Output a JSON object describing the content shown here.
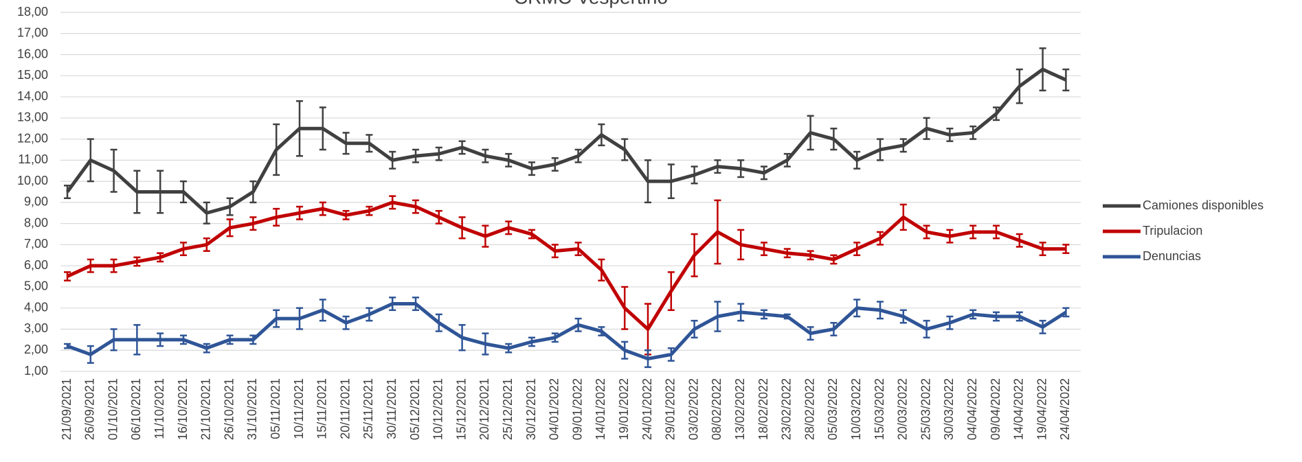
{
  "chart_data": {
    "type": "line",
    "title": "CRMC Vespertino",
    "categories": [
      "21/09/2021",
      "26/09/2021",
      "01/10/2021",
      "06/10/2021",
      "11/10/2021",
      "16/10/2021",
      "21/10/2021",
      "26/10/2021",
      "31/10/2021",
      "05/11/2021",
      "10/11/2021",
      "15/11/2021",
      "20/11/2021",
      "25/11/2021",
      "30/11/2021",
      "05/12/2021",
      "10/12/2021",
      "15/12/2021",
      "20/12/2021",
      "25/12/2021",
      "30/12/2021",
      "04/01/2022",
      "09/01/2022",
      "14/01/2022",
      "19/01/2022",
      "24/01/2022",
      "29/01/2022",
      "03/02/2022",
      "08/02/2022",
      "13/02/2022",
      "18/02/2022",
      "23/02/2022",
      "28/02/2022",
      "05/03/2022",
      "10/03/2022",
      "15/03/2022",
      "20/03/2022",
      "25/03/2022",
      "30/03/2022",
      "04/04/2022",
      "09/04/2022",
      "14/04/2022",
      "19/04/2022",
      "24/04/2022"
    ],
    "series": [
      {
        "name": "Camiones disponibles",
        "color": "#404040",
        "values": [
          9.5,
          11.0,
          10.5,
          9.5,
          9.5,
          9.5,
          8.5,
          8.8,
          9.5,
          11.5,
          12.5,
          12.5,
          11.8,
          11.8,
          11.0,
          11.2,
          11.3,
          11.6,
          11.2,
          11.0,
          10.6,
          10.8,
          11.2,
          12.2,
          11.5,
          10.0,
          10.0,
          10.3,
          10.7,
          10.6,
          10.4,
          11.0,
          12.3,
          12.0,
          11.0,
          11.5,
          11.7,
          12.5,
          12.2,
          12.3,
          13.2,
          14.5,
          15.3,
          14.8
        ],
        "errors": [
          0.3,
          1.0,
          1.0,
          1.0,
          1.0,
          0.5,
          0.5,
          0.4,
          0.5,
          1.2,
          1.3,
          1.0,
          0.5,
          0.4,
          0.4,
          0.3,
          0.3,
          0.3,
          0.3,
          0.3,
          0.3,
          0.3,
          0.3,
          0.5,
          0.5,
          1.0,
          0.8,
          0.4,
          0.3,
          0.4,
          0.3,
          0.3,
          0.8,
          0.5,
          0.4,
          0.5,
          0.3,
          0.5,
          0.3,
          0.3,
          0.3,
          0.8,
          1.0,
          0.5
        ]
      },
      {
        "name": "Tripulacion",
        "color": "#c00000",
        "values": [
          5.5,
          6.0,
          6.0,
          6.2,
          6.4,
          6.8,
          7.0,
          7.8,
          8.0,
          8.3,
          8.5,
          8.7,
          8.4,
          8.6,
          9.0,
          8.8,
          8.3,
          7.8,
          7.4,
          7.8,
          7.5,
          6.7,
          6.8,
          5.8,
          4.0,
          3.0,
          4.8,
          6.5,
          7.6,
          7.0,
          6.8,
          6.6,
          6.5,
          6.3,
          6.8,
          7.3,
          8.3,
          7.6,
          7.4,
          7.6,
          7.6,
          7.2,
          6.8,
          6.8
        ],
        "errors": [
          0.2,
          0.3,
          0.3,
          0.2,
          0.2,
          0.3,
          0.3,
          0.4,
          0.3,
          0.4,
          0.3,
          0.3,
          0.2,
          0.2,
          0.3,
          0.3,
          0.3,
          0.5,
          0.5,
          0.3,
          0.2,
          0.3,
          0.3,
          0.5,
          1.0,
          1.2,
          0.9,
          1.0,
          1.5,
          0.7,
          0.3,
          0.2,
          0.2,
          0.2,
          0.3,
          0.3,
          0.6,
          0.3,
          0.3,
          0.3,
          0.3,
          0.3,
          0.3,
          0.2
        ]
      },
      {
        "name": "Denuncias",
        "color": "#2f5597",
        "values": [
          2.2,
          1.8,
          2.5,
          2.5,
          2.5,
          2.5,
          2.1,
          2.5,
          2.5,
          3.5,
          3.5,
          3.9,
          3.3,
          3.7,
          4.2,
          4.2,
          3.3,
          2.6,
          2.3,
          2.1,
          2.4,
          2.6,
          3.2,
          2.9,
          2.0,
          1.6,
          1.8,
          3.0,
          3.6,
          3.8,
          3.7,
          3.6,
          2.8,
          3.0,
          4.0,
          3.9,
          3.6,
          3.0,
          3.3,
          3.7,
          3.6,
          3.6,
          3.1,
          3.8
        ],
        "errors": [
          0.1,
          0.4,
          0.5,
          0.7,
          0.3,
          0.2,
          0.2,
          0.2,
          0.2,
          0.4,
          0.5,
          0.5,
          0.3,
          0.3,
          0.3,
          0.3,
          0.4,
          0.6,
          0.5,
          0.2,
          0.2,
          0.2,
          0.3,
          0.2,
          0.4,
          0.4,
          0.3,
          0.4,
          0.7,
          0.4,
          0.2,
          0.1,
          0.3,
          0.3,
          0.4,
          0.4,
          0.3,
          0.4,
          0.3,
          0.2,
          0.2,
          0.2,
          0.3,
          0.2
        ]
      }
    ],
    "ylim": [
      1,
      18
    ],
    "yticks": [
      {
        "value": 1,
        "label": "1,00"
      },
      {
        "value": 2,
        "label": "2,00"
      },
      {
        "value": 3,
        "label": "3,00"
      },
      {
        "value": 4,
        "label": "4,00"
      },
      {
        "value": 5,
        "label": "5,00"
      },
      {
        "value": 6,
        "label": "6,00"
      },
      {
        "value": 7,
        "label": "7,00"
      },
      {
        "value": 8,
        "label": "8,00"
      },
      {
        "value": 9,
        "label": "9,00"
      },
      {
        "value": 10,
        "label": "10,00"
      },
      {
        "value": 11,
        "label": "11,00"
      },
      {
        "value": 12,
        "label": "12,00"
      },
      {
        "value": 13,
        "label": "13,00"
      },
      {
        "value": 14,
        "label": "14,00"
      },
      {
        "value": 15,
        "label": "15,00"
      },
      {
        "value": 16,
        "label": "16,00"
      },
      {
        "value": 17,
        "label": "17,00"
      },
      {
        "value": 18,
        "label": "18,00"
      }
    ],
    "grid": true,
    "legend": "right"
  }
}
